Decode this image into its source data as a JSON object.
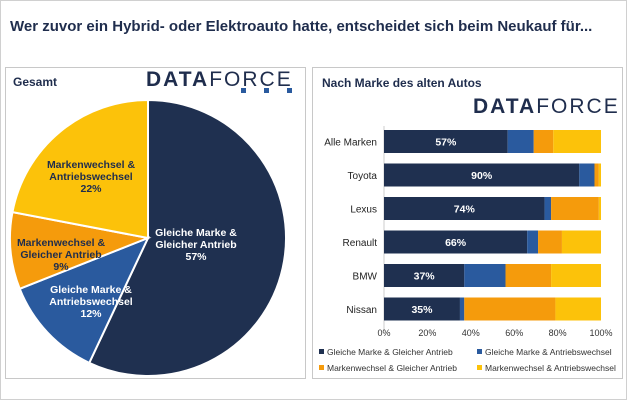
{
  "title": "Wer zuvor ein Hybrid- oder Elektroauto hatte, entscheidet sich beim Neukauf für...",
  "logo": {
    "bold": "DATA",
    "light": "FORCE"
  },
  "colors": {
    "dark": "#1f3050",
    "blue": "#2a5a9e",
    "orange": "#f59b0c",
    "yellow": "#fcc20a"
  },
  "chart_data": [
    {
      "type": "pie",
      "title": "Gesamt",
      "slices": [
        {
          "label_lines": [
            "Gleiche Marke &",
            "Gleicher Antrieb"
          ],
          "value": 57,
          "label_value": "57%",
          "color": "#1f3050"
        },
        {
          "label_lines": [
            "Gleiche Marke &",
            "Antriebswechsel"
          ],
          "value": 12,
          "label_value": "12%",
          "color": "#2a5a9e"
        },
        {
          "label_lines": [
            "Markenwechsel &",
            "Gleicher Antrieb"
          ],
          "value": 9,
          "label_value": "9%",
          "color": "#f59b0c"
        },
        {
          "label_lines": [
            "Markenwechsel &",
            "Antriebswechsel"
          ],
          "value": 22,
          "label_value": "22%",
          "color": "#fcc20a"
        }
      ]
    },
    {
      "type": "bar",
      "orientation": "horizontal",
      "stacked": true,
      "title": "Nach Marke des alten Autos",
      "categories": [
        "Alle Marken",
        "Toyota",
        "Lexus",
        "Renault",
        "BMW",
        "Nissan"
      ],
      "series": [
        {
          "name": "Gleiche Marke  & Gleicher Antrieb",
          "color": "#1f3050",
          "values": [
            57,
            90,
            74,
            66,
            37,
            35
          ],
          "labels": [
            "57%",
            "90%",
            "74%",
            "66%",
            "37%",
            "35%"
          ]
        },
        {
          "name": "Gleiche Marke  & Antriebswechsel",
          "color": "#2a5a9e",
          "values": [
            12,
            7,
            3,
            5,
            19,
            2
          ]
        },
        {
          "name": "Markenwechsel  & Gleicher Antrieb",
          "color": "#f59b0c",
          "values": [
            9,
            2,
            22,
            11,
            21,
            42
          ]
        },
        {
          "name": "Markenwechsel  & Antriebswechsel",
          "color": "#fcc20a",
          "values": [
            22,
            1,
            1,
            18,
            23,
            21
          ]
        }
      ],
      "xlim": [
        0,
        100
      ],
      "xticks": [
        "0%",
        "20%",
        "40%",
        "60%",
        "80%",
        "100%"
      ],
      "legend": "bottom",
      "grid": false
    }
  ]
}
